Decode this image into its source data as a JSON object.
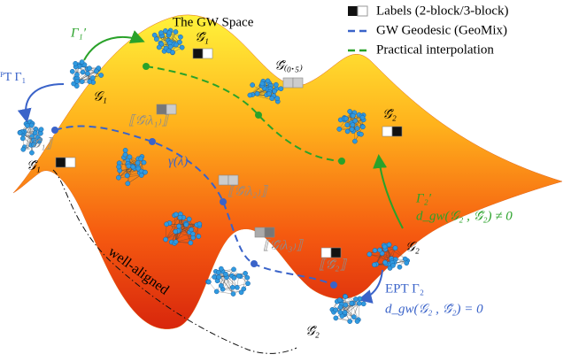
{
  "title": "The GW Space",
  "legend": {
    "labels": "Labels (2-block/3-block)",
    "geodesic": "GW Geodesic (GeoMix)",
    "practical": "Practical interpolation"
  },
  "annotations": {
    "gamma1_prime": "Γ₁′",
    "g_tilde_1_top": "𝒢̃₁",
    "g_tilde_half": "𝒢̃₍₀.₅₎",
    "g_tilde_2_right": "𝒢̃₂",
    "ept_gamma1": "ᴾT Γ₁",
    "g1": "𝒢₁",
    "g_tilde_1_left": "𝒢̃₁",
    "aligned_g1": "⟦𝒢̃₁⟧",
    "aligned_lambda1": "⟦𝒢̃₍λ₁₎⟧",
    "gamma_lambda": "γ(λ)",
    "aligned_lambda2": "⟦𝒢̃₍λ₂₎⟧",
    "aligned_lambda3": "⟦𝒢̃₍λ₃₎⟧",
    "aligned_g2": "⟦𝒢̃₂⟧",
    "gamma2_prime": "Γ₂′",
    "dgw_neq": "d_gw(𝒢₂ , 𝒢̃₂) ≠ 0",
    "g2": "𝒢₂",
    "ept_gamma2": "EPT Γ₂",
    "dgw_eq": "d_gw(𝒢₂ , 𝒢̃₂) = 0",
    "g_tilde_2_bottom": "𝒢̃₂",
    "well_aligned": "well-aligned"
  }
}
